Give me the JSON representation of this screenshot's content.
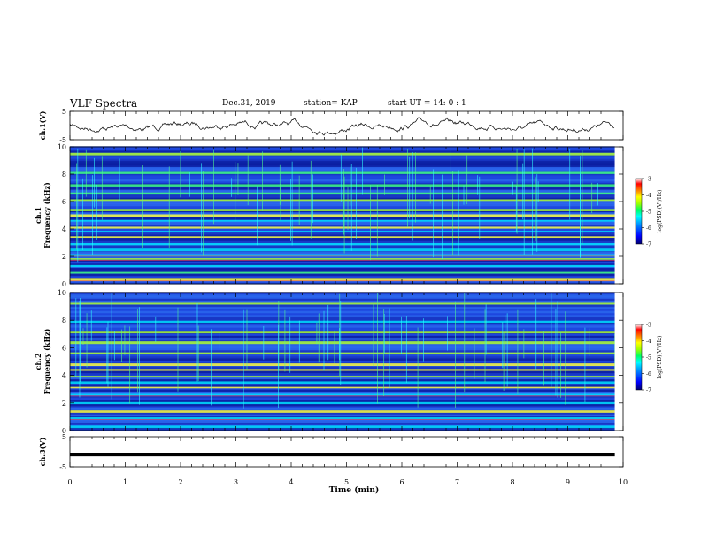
{
  "header": {
    "title": "VLF Spectra",
    "date": "Dec.31, 2019",
    "station": "station= KAP",
    "start": "start  UT =   14: 0  : 1"
  },
  "chart_data": [
    {
      "type": "line",
      "name": "ch1-waveform",
      "ylabel": "ch.1(V)",
      "yticks": [
        "5",
        "-5"
      ],
      "ylim": [
        -5,
        5
      ],
      "xlim": [
        0,
        10
      ]
    },
    {
      "type": "heatmap",
      "name": "ch1-spectrogram",
      "ylabel": "ch.1\nFrequency (kHz)",
      "ylabel_lines": [
        "ch.1",
        "Frequency (kHz)"
      ],
      "ylim": [
        0,
        10
      ],
      "yticks": [
        "0",
        "2",
        "4",
        "6",
        "8",
        "10"
      ],
      "xlim": [
        0,
        10
      ],
      "data_end_min": 9.85,
      "colorbar": {
        "label": "log(PSD)(V²/Hz)",
        "range": [
          -7,
          -3
        ],
        "ticks": [
          "-3",
          "-4",
          "-5",
          "-6",
          "-7"
        ],
        "colors": [
          "#000080",
          "#0000ff",
          "#0080ff",
          "#00ffff",
          "#00ff80",
          "#80ff00",
          "#ffff00",
          "#ff8000",
          "#ff0000",
          "#ffffff"
        ]
      },
      "bands_khz": [
        0.3,
        0.8,
        1.3,
        1.8,
        2.1,
        2.5,
        2.9,
        3.4,
        3.8,
        4.1,
        4.6,
        5.0,
        5.4,
        6.1,
        6.6,
        7.2,
        8.1,
        9.5
      ]
    },
    {
      "type": "heatmap",
      "name": "ch2-spectrogram",
      "ylabel_lines": [
        "ch.2",
        "Frequency (kHz)"
      ],
      "ylim": [
        0,
        10
      ],
      "yticks": [
        "0",
        "2",
        "4",
        "6",
        "8",
        "10"
      ],
      "xlim": [
        0,
        10
      ],
      "data_end_min": 9.85,
      "colorbar": {
        "label": "log(PSD)(V²/Hz)",
        "range": [
          -7,
          -3
        ],
        "ticks": [
          "-3",
          "-4",
          "-5",
          "-6",
          "-7"
        ]
      },
      "bands_khz": [
        0.3,
        0.9,
        1.4,
        2.0,
        2.6,
        3.1,
        3.5,
        3.9,
        4.4,
        4.8,
        5.6,
        6.4,
        7.1,
        7.9,
        9.2
      ]
    },
    {
      "type": "line",
      "name": "ch3-waveform",
      "ylabel": "ch.3(V)",
      "yticks": [
        "5",
        "-5"
      ],
      "ylim": [
        -5,
        5
      ],
      "xlim": [
        0,
        10
      ],
      "constant_value": -1.0
    }
  ],
  "xaxis": {
    "label": "Time (min)",
    "ticks": [
      "0",
      "1",
      "2",
      "3",
      "4",
      "5",
      "6",
      "7",
      "8",
      "9",
      "10"
    ]
  }
}
